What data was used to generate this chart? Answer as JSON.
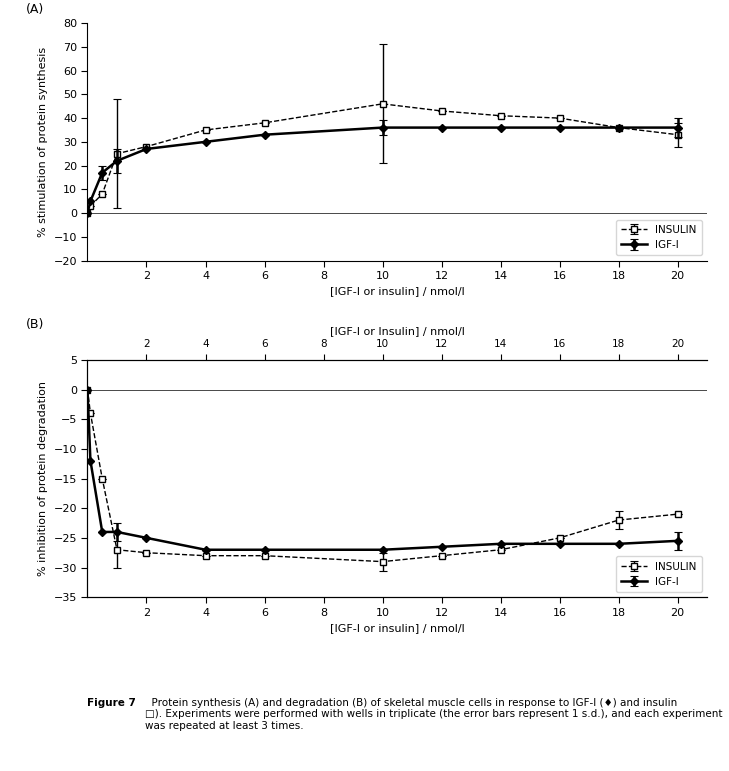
{
  "panel_A": {
    "x": [
      0,
      0.1,
      0.5,
      1,
      2,
      4,
      6,
      10,
      12,
      14,
      16,
      18,
      20
    ],
    "igf1_y": [
      0,
      5,
      17,
      22,
      27,
      30,
      33,
      36,
      36,
      36,
      36,
      36,
      36
    ],
    "igf1_err": [
      0,
      0,
      3,
      5,
      0,
      0,
      0,
      3,
      0,
      0,
      0,
      0,
      4
    ],
    "insulin_y": [
      0,
      3,
      8,
      25,
      28,
      35,
      38,
      46,
      43,
      41,
      40,
      36,
      33
    ],
    "insulin_err": [
      0,
      0,
      0,
      23,
      0,
      0,
      0,
      25,
      0,
      0,
      0,
      0,
      5
    ],
    "ylabel": "% stimulation of protein synthesis",
    "xlabel": "[IGF-I or insulin] / nmol/l",
    "ylim": [
      -20,
      80
    ],
    "yticks": [
      -20,
      -10,
      0,
      10,
      20,
      30,
      40,
      50,
      60,
      70,
      80
    ],
    "xlim": [
      0,
      21
    ],
    "xticks": [
      2,
      4,
      6,
      8,
      10,
      12,
      14,
      16,
      18,
      20
    ],
    "panel_label": "(A)"
  },
  "panel_B": {
    "x": [
      0,
      0.1,
      0.5,
      1,
      2,
      4,
      6,
      10,
      12,
      14,
      16,
      18,
      20
    ],
    "igf1_y": [
      0,
      -12,
      -24,
      -24,
      -25,
      -27,
      -27,
      -27,
      -26.5,
      -26,
      -26,
      -26,
      -25.5
    ],
    "igf1_err": [
      0,
      0,
      0,
      1.5,
      0,
      0,
      0,
      0,
      0,
      0,
      0,
      0,
      1.5
    ],
    "insulin_y": [
      0,
      -4,
      -15,
      -27,
      -27.5,
      -28,
      -28,
      -29,
      -28,
      -27,
      -25,
      -22,
      -21
    ],
    "insulin_err": [
      0,
      0,
      0,
      3,
      0,
      0,
      0,
      1.5,
      0,
      0,
      0,
      1.5,
      0
    ],
    "ylabel": "% inhibition of protein degradation",
    "xlabel": "[IGF-I or insulin] / nmol/l",
    "top_xlabel": "[IGF-I or Insulin] / nmol/l",
    "ylim": [
      -35,
      5
    ],
    "yticks": [
      -35,
      -30,
      -25,
      -20,
      -15,
      -10,
      -5,
      0,
      5
    ],
    "xlim": [
      0,
      21
    ],
    "xticks": [
      2,
      4,
      6,
      8,
      10,
      12,
      14,
      16,
      18,
      20
    ],
    "panel_label": "(B)"
  },
  "legend_insulin_label": "INSULIN",
  "legend_igf1_label": "IGF-I",
  "caption_bold": "Figure 7",
  "caption_normal": "  Protein synthesis (A) and degradation (B) of skeletal muscle cells in response to IGF-I (♦) and insulin\n□). Experiments were performed with wells in triplicate (the error bars represent 1 s.d.), and each experiment\nwas repeated at least 3 times."
}
